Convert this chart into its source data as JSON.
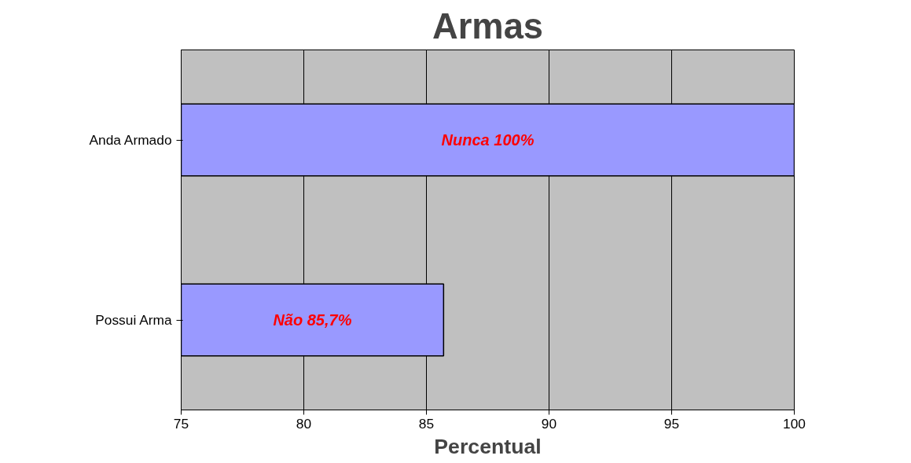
{
  "chart_data": {
    "type": "bar",
    "orientation": "horizontal",
    "title": "Armas",
    "xlabel": "Percentual",
    "categories": [
      "Anda Armado",
      "Possui Arma"
    ],
    "values": [
      100,
      85.7
    ],
    "color": "#9999ff",
    "value_labels": [
      "Nunca 100%",
      "Não 85,7%"
    ],
    "xlim": [
      75,
      100
    ],
    "xticks": [
      75,
      80,
      85,
      90,
      95,
      100
    ],
    "grid": "x"
  }
}
